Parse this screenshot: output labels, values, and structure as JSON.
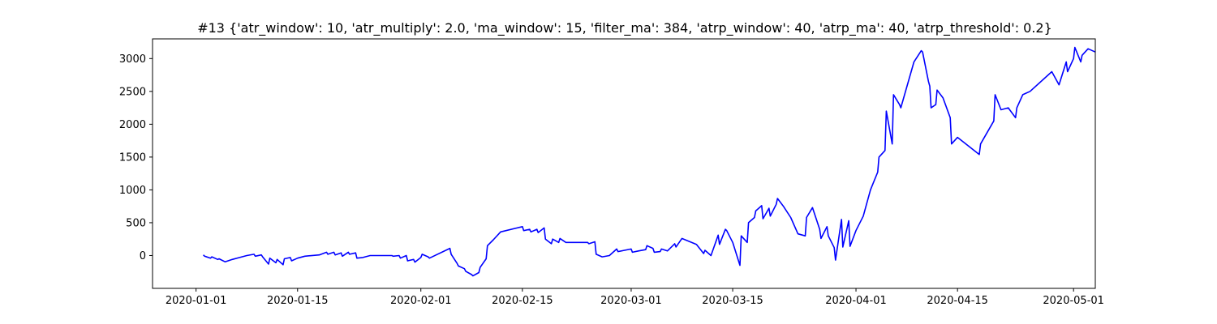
{
  "chart_data": {
    "type": "line",
    "title": "#13 {'atr_window': 10, 'atr_multiply': 2.0, 'ma_window': 15, 'filter_ma': 384, 'atrp_window': 40, 'atrp_ma': 40, 'atrp_threshold': 0.2}",
    "xlabel": "",
    "ylabel": "",
    "x_axis": "date",
    "xlim": [
      "2019-12-26",
      "2020-05-04"
    ],
    "ylim": [
      -500,
      3300
    ],
    "grid": false,
    "x_ticks": [
      "2020-01-01",
      "2020-01-15",
      "2020-02-01",
      "2020-02-15",
      "2020-03-01",
      "2020-03-15",
      "2020-04-01",
      "2020-04-15",
      "2020-05-01"
    ],
    "y_ticks": [
      0,
      500,
      1000,
      1500,
      2000,
      2500,
      3000
    ],
    "series": [
      {
        "color": "#0000ff",
        "points": [
          [
            "2020-01-02",
            10
          ],
          [
            "2020-01-02",
            -10
          ],
          [
            "2020-01-03",
            -40
          ],
          [
            "2020-01-03",
            -20
          ],
          [
            "2020-01-04",
            -60
          ],
          [
            "2020-01-04",
            -50
          ],
          [
            "2020-01-05",
            -95
          ],
          [
            "2020-01-06",
            -60
          ],
          [
            "2020-01-07",
            -30
          ],
          [
            "2020-01-08",
            0
          ],
          [
            "2020-01-09",
            20
          ],
          [
            "2020-01-09",
            -10
          ],
          [
            "2020-01-10",
            10
          ],
          [
            "2020-01-10",
            -20
          ],
          [
            "2020-01-11",
            -130
          ],
          [
            "2020-01-11",
            -40
          ],
          [
            "2020-01-12",
            -110
          ],
          [
            "2020-01-12",
            -60
          ],
          [
            "2020-01-13",
            -140
          ],
          [
            "2020-01-13",
            -50
          ],
          [
            "2020-01-14",
            -30
          ],
          [
            "2020-01-14",
            -80
          ],
          [
            "2020-01-15",
            -40
          ],
          [
            "2020-01-16",
            -10
          ],
          [
            "2020-01-18",
            10
          ],
          [
            "2020-01-19",
            50
          ],
          [
            "2020-01-19",
            20
          ],
          [
            "2020-01-20",
            50
          ],
          [
            "2020-01-20",
            10
          ],
          [
            "2020-01-21",
            40
          ],
          [
            "2020-01-21",
            -10
          ],
          [
            "2020-01-22",
            50
          ],
          [
            "2020-01-22",
            20
          ],
          [
            "2020-01-23",
            40
          ],
          [
            "2020-01-23",
            -40
          ],
          [
            "2020-01-24",
            -30
          ],
          [
            "2020-01-25",
            0
          ],
          [
            "2020-01-28",
            0
          ],
          [
            "2020-01-28",
            -10
          ],
          [
            "2020-01-29",
            0
          ],
          [
            "2020-01-29",
            -40
          ],
          [
            "2020-01-30",
            0
          ],
          [
            "2020-01-30",
            -80
          ],
          [
            "2020-01-31",
            -60
          ],
          [
            "2020-01-31",
            -100
          ],
          [
            "2020-02-01",
            -30
          ],
          [
            "2020-02-01",
            20
          ],
          [
            "2020-02-02",
            -20
          ],
          [
            "2020-02-02",
            -40
          ],
          [
            "2020-02-05",
            110
          ],
          [
            "2020-02-05",
            20
          ],
          [
            "2020-02-06",
            -120
          ],
          [
            "2020-02-06",
            -160
          ],
          [
            "2020-02-07",
            -200
          ],
          [
            "2020-02-07",
            -240
          ],
          [
            "2020-02-08",
            -290
          ],
          [
            "2020-02-08",
            -310
          ],
          [
            "2020-02-09",
            -260
          ],
          [
            "2020-02-09",
            -180
          ],
          [
            "2020-02-10",
            -50
          ],
          [
            "2020-02-10",
            150
          ],
          [
            "2020-02-11",
            240
          ],
          [
            "2020-02-12",
            360
          ],
          [
            "2020-02-15",
            440
          ],
          [
            "2020-02-15",
            380
          ],
          [
            "2020-02-16",
            400
          ],
          [
            "2020-02-16",
            360
          ],
          [
            "2020-02-17",
            400
          ],
          [
            "2020-02-17",
            350
          ],
          [
            "2020-02-18",
            420
          ],
          [
            "2020-02-18",
            250
          ],
          [
            "2020-02-19",
            180
          ],
          [
            "2020-02-19",
            250
          ],
          [
            "2020-02-20",
            200
          ],
          [
            "2020-02-20",
            260
          ],
          [
            "2020-02-21",
            200
          ],
          [
            "2020-02-24",
            200
          ],
          [
            "2020-02-24",
            180
          ],
          [
            "2020-02-25",
            210
          ],
          [
            "2020-02-25",
            20
          ],
          [
            "2020-02-26",
            -20
          ],
          [
            "2020-02-27",
            0
          ],
          [
            "2020-02-28",
            100
          ],
          [
            "2020-02-28",
            60
          ],
          [
            "2020-03-01",
            100
          ],
          [
            "2020-03-01",
            50
          ],
          [
            "2020-03-02",
            70
          ],
          [
            "2020-03-03",
            90
          ],
          [
            "2020-03-03",
            150
          ],
          [
            "2020-03-04",
            110
          ],
          [
            "2020-03-04",
            50
          ],
          [
            "2020-03-05",
            60
          ],
          [
            "2020-03-05",
            100
          ],
          [
            "2020-03-06",
            70
          ],
          [
            "2020-03-07",
            180
          ],
          [
            "2020-03-07",
            130
          ],
          [
            "2020-03-08",
            260
          ],
          [
            "2020-03-10",
            170
          ],
          [
            "2020-03-11",
            30
          ],
          [
            "2020-03-11",
            80
          ],
          [
            "2020-03-12",
            0
          ],
          [
            "2020-03-13",
            310
          ],
          [
            "2020-03-13",
            170
          ],
          [
            "2020-03-14",
            400
          ],
          [
            "2020-03-14",
            380
          ],
          [
            "2020-03-15",
            200
          ],
          [
            "2020-03-16",
            -150
          ],
          [
            "2020-03-16",
            300
          ],
          [
            "2020-03-17",
            200
          ],
          [
            "2020-03-17",
            500
          ],
          [
            "2020-03-18",
            580
          ],
          [
            "2020-03-18",
            680
          ],
          [
            "2020-03-19",
            760
          ],
          [
            "2020-03-19",
            560
          ],
          [
            "2020-03-20",
            720
          ],
          [
            "2020-03-20",
            600
          ],
          [
            "2020-03-21",
            780
          ],
          [
            "2020-03-21",
            870
          ],
          [
            "2020-03-22",
            750
          ],
          [
            "2020-03-23",
            580
          ],
          [
            "2020-03-24",
            330
          ],
          [
            "2020-03-25",
            300
          ],
          [
            "2020-03-25",
            580
          ],
          [
            "2020-03-26",
            730
          ],
          [
            "2020-03-27",
            400
          ],
          [
            "2020-03-27",
            260
          ],
          [
            "2020-03-28",
            440
          ],
          [
            "2020-03-28",
            300
          ],
          [
            "2020-03-29",
            120
          ],
          [
            "2020-03-29",
            -70
          ],
          [
            "2020-03-30",
            550
          ],
          [
            "2020-03-30",
            130
          ],
          [
            "2020-03-31",
            530
          ],
          [
            "2020-03-31",
            140
          ],
          [
            "2020-04-01",
            380
          ],
          [
            "2020-04-02",
            600
          ],
          [
            "2020-04-03",
            1000
          ],
          [
            "2020-04-03",
            1050
          ],
          [
            "2020-04-04",
            1270
          ],
          [
            "2020-04-04",
            1500
          ],
          [
            "2020-04-05",
            1600
          ],
          [
            "2020-04-05",
            2200
          ],
          [
            "2020-04-06",
            1700
          ],
          [
            "2020-04-06",
            2450
          ],
          [
            "2020-04-07",
            2300
          ],
          [
            "2020-04-07",
            2250
          ],
          [
            "2020-04-09",
            2950
          ],
          [
            "2020-04-10",
            3120
          ],
          [
            "2020-04-10",
            3100
          ],
          [
            "2020-04-11",
            2650
          ],
          [
            "2020-04-11",
            2580
          ],
          [
            "2020-04-11",
            2250
          ],
          [
            "2020-04-12",
            2300
          ],
          [
            "2020-04-12",
            2520
          ],
          [
            "2020-04-13",
            2400
          ],
          [
            "2020-04-14",
            2100
          ],
          [
            "2020-04-14",
            1700
          ],
          [
            "2020-04-15",
            1800
          ],
          [
            "2020-04-18",
            1540
          ],
          [
            "2020-04-18",
            1700
          ],
          [
            "2020-04-20",
            2050
          ],
          [
            "2020-04-20",
            2450
          ],
          [
            "2020-04-21",
            2220
          ],
          [
            "2020-04-22",
            2250
          ],
          [
            "2020-04-23",
            2100
          ],
          [
            "2020-04-23",
            2250
          ],
          [
            "2020-04-24",
            2450
          ],
          [
            "2020-04-25",
            2500
          ],
          [
            "2020-04-28",
            2800
          ],
          [
            "2020-04-29",
            2600
          ],
          [
            "2020-04-30",
            2950
          ],
          [
            "2020-04-30",
            2800
          ],
          [
            "2020-05-01",
            3000
          ],
          [
            "2020-05-01",
            3170
          ],
          [
            "2020-05-02",
            2950
          ],
          [
            "2020-05-02",
            3050
          ],
          [
            "2020-05-03",
            3150
          ],
          [
            "2020-05-04",
            3100
          ]
        ]
      }
    ]
  }
}
